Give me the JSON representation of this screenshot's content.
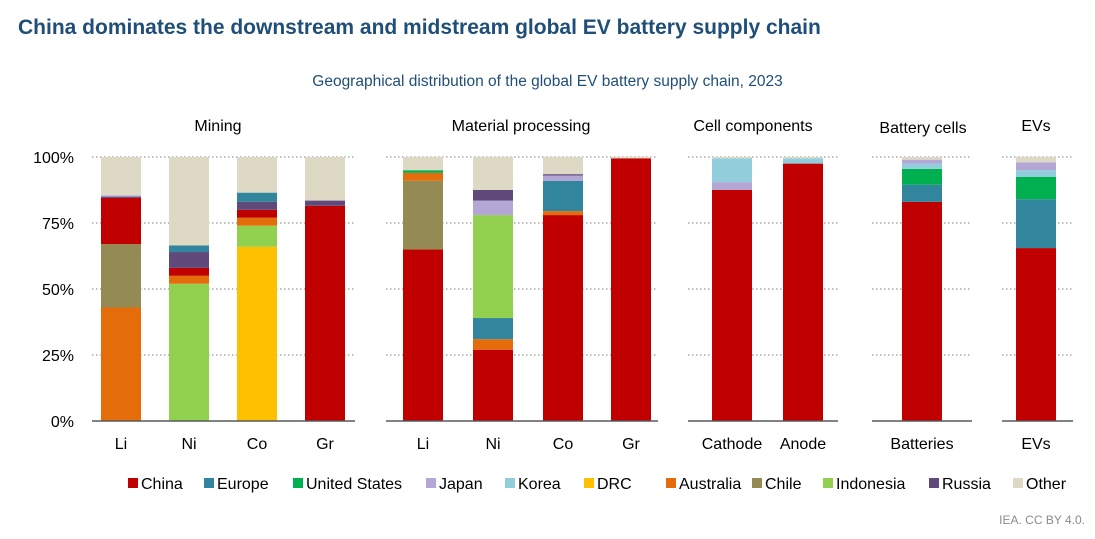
{
  "title": "China dominates the downstream and midstream global EV battery supply chain",
  "subtitle": "Geographical distribution of the global EV battery supply chain, 2023",
  "source": "IEA. CC BY 4.0.",
  "colors": {
    "China": "#c00000",
    "Europe": "#31859c",
    "United States": "#00b050",
    "Japan": "#b4a7d6",
    "Korea": "#92cddc",
    "DRC": "#ffc000",
    "Australia": "#e46c0a",
    "Chile": "#948a54",
    "Indonesia": "#92d050",
    "Russia": "#604a7b",
    "Other": "#ddd9c4"
  },
  "chart_data": {
    "type": "bar",
    "stacked": true,
    "ylim": [
      0,
      100
    ],
    "yticks": [
      "0%",
      "25%",
      "50%",
      "75%",
      "100%"
    ],
    "legend_position": "bottom",
    "legend": [
      "China",
      "Europe",
      "United States",
      "Japan",
      "Korea",
      "DRC",
      "Australia",
      "Chile",
      "Indonesia",
      "Russia",
      "Other"
    ],
    "panels": [
      {
        "title": "Mining",
        "bars": [
          {
            "label": "Li",
            "segments": [
              {
                "name": "Australia",
                "value": 43
              },
              {
                "name": "Chile",
                "value": 24
              },
              {
                "name": "China",
                "value": 17.5
              },
              {
                "name": "Russia",
                "value": 0.5
              },
              {
                "name": "Japan",
                "value": 0.5
              },
              {
                "name": "Other",
                "value": 14.5
              }
            ]
          },
          {
            "label": "Ni",
            "segments": [
              {
                "name": "Indonesia",
                "value": 52
              },
              {
                "name": "Australia",
                "value": 3
              },
              {
                "name": "China",
                "value": 3
              },
              {
                "name": "Russia",
                "value": 6
              },
              {
                "name": "Europe",
                "value": 2.5
              },
              {
                "name": "Other",
                "value": 33.5
              }
            ]
          },
          {
            "label": "Co",
            "segments": [
              {
                "name": "DRC",
                "value": 66
              },
              {
                "name": "Indonesia",
                "value": 8
              },
              {
                "name": "Australia",
                "value": 3
              },
              {
                "name": "China",
                "value": 3
              },
              {
                "name": "Russia",
                "value": 3
              },
              {
                "name": "Europe",
                "value": 3.5
              },
              {
                "name": "Other",
                "value": 13.5
              }
            ]
          },
          {
            "label": "Gr",
            "segments": [
              {
                "name": "China",
                "value": 81.5
              },
              {
                "name": "Russia",
                "value": 2
              },
              {
                "name": "Other",
                "value": 16.5
              }
            ]
          }
        ]
      },
      {
        "title": "Material processing",
        "bars": [
          {
            "label": "Li",
            "segments": [
              {
                "name": "China",
                "value": 65
              },
              {
                "name": "Chile",
                "value": 26
              },
              {
                "name": "Australia",
                "value": 3
              },
              {
                "name": "United States",
                "value": 1
              },
              {
                "name": "Other",
                "value": 5
              }
            ]
          },
          {
            "label": "Ni",
            "segments": [
              {
                "name": "China",
                "value": 27
              },
              {
                "name": "Australia",
                "value": 4
              },
              {
                "name": "Europe",
                "value": 8
              },
              {
                "name": "Indonesia",
                "value": 39
              },
              {
                "name": "Japan",
                "value": 5.5
              },
              {
                "name": "Russia",
                "value": 4
              },
              {
                "name": "Other",
                "value": 12.5
              }
            ]
          },
          {
            "label": "Co",
            "segments": [
              {
                "name": "China",
                "value": 78
              },
              {
                "name": "Australia",
                "value": 1.5
              },
              {
                "name": "Europe",
                "value": 11.5
              },
              {
                "name": "Japan",
                "value": 2
              },
              {
                "name": "Russia",
                "value": 0.5
              },
              {
                "name": "Other",
                "value": 6.5
              }
            ]
          },
          {
            "label": "Gr",
            "segments": [
              {
                "name": "China",
                "value": 99.5
              },
              {
                "name": "Other",
                "value": 0.5
              }
            ]
          }
        ]
      },
      {
        "title": "Cell components",
        "bars": [
          {
            "label": "Cathode",
            "segments": [
              {
                "name": "China",
                "value": 87.5
              },
              {
                "name": "Japan",
                "value": 3
              },
              {
                "name": "Korea",
                "value": 9
              },
              {
                "name": "Other",
                "value": 0.5
              }
            ]
          },
          {
            "label": "Anode",
            "segments": [
              {
                "name": "China",
                "value": 97.5
              },
              {
                "name": "Korea",
                "value": 2
              },
              {
                "name": "Other",
                "value": 0.5
              }
            ]
          }
        ]
      },
      {
        "title": "Battery cells",
        "bars": [
          {
            "label": "Batteries",
            "segments": [
              {
                "name": "China",
                "value": 83
              },
              {
                "name": "Europe",
                "value": 6.5
              },
              {
                "name": "United States",
                "value": 6
              },
              {
                "name": "Korea",
                "value": 2
              },
              {
                "name": "Japan",
                "value": 1.5
              },
              {
                "name": "Other",
                "value": 1
              }
            ]
          }
        ]
      },
      {
        "title": "EVs",
        "bars": [
          {
            "label": "EVs",
            "segments": [
              {
                "name": "China",
                "value": 65.5
              },
              {
                "name": "Europe",
                "value": 18.5
              },
              {
                "name": "United States",
                "value": 8.5
              },
              {
                "name": "Korea",
                "value": 2.5
              },
              {
                "name": "Japan",
                "value": 3
              },
              {
                "name": "Other",
                "value": 2
              }
            ]
          }
        ]
      }
    ]
  }
}
